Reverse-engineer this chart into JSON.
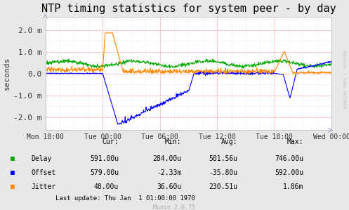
{
  "title": "NTP timing statistics for system peer - by day",
  "ylabel": "seconds",
  "background_color": "#e8e8e8",
  "plot_bg_color": "#ffffff",
  "grid_major_color": "#ffaaaa",
  "grid_minor_color": "#ccccdd",
  "x_labels": [
    "Mon 18:00",
    "Tue 00:00",
    "Tue 06:00",
    "Tue 12:00",
    "Tue 18:00",
    "Wed 00:00"
  ],
  "y_tick_labels": [
    "-2.0 m",
    "-1.0 m",
    "0.0",
    "1.0 m",
    "2.0 m"
  ],
  "y_ticks": [
    -0.002,
    -0.001,
    0.0,
    0.001,
    0.002
  ],
  "ylim": [
    -0.0026,
    0.0026
  ],
  "xlim": [
    0.0,
    1.0
  ],
  "title_fontsize": 11,
  "axis_fontsize": 8,
  "delay_color": "#00aa00",
  "offset_color": "#0000ff",
  "jitter_color": "#ff8800",
  "watermark": "RRDTOOL / TOBI OETIKER",
  "munin_text": "Munin 2.0.75",
  "stats_header": [
    "Cur:",
    "Min:",
    "Avg:",
    "Max:"
  ],
  "stats_delay": [
    "591.00u",
    "284.00u",
    "501.56u",
    "746.00u"
  ],
  "stats_offset": [
    "579.00u",
    "-2.33m",
    "-35.80u",
    "592.00u"
  ],
  "stats_jitter": [
    "48.00u",
    "36.60u",
    "230.51u",
    "1.86m"
  ],
  "last_update": "Last update: Thu Jan  1 01:00:00 1970"
}
